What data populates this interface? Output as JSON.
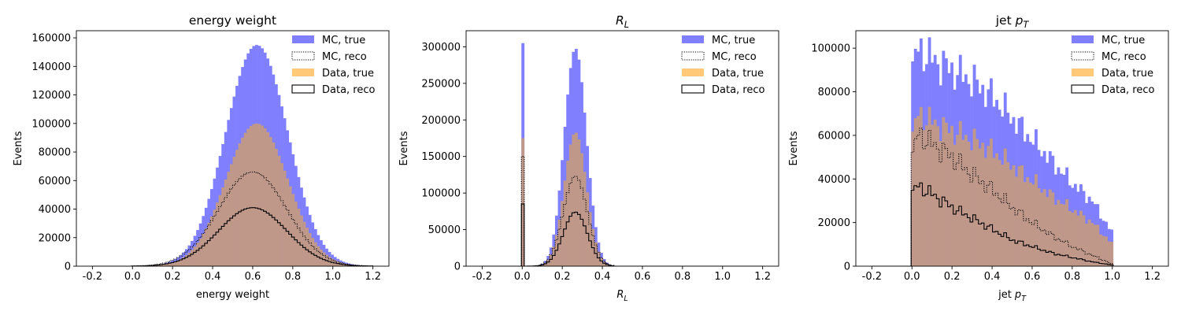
{
  "figure": {
    "layout": "1x3",
    "colors": {
      "mc_true": "#8080ff",
      "data_true": "#ffc978",
      "overlap": "#c0988a",
      "reco": "#000000"
    },
    "legend": [
      "MC, true",
      "MC, reco",
      "Data, true",
      "Data, reco"
    ]
  },
  "chart_data": [
    {
      "type": "histogram",
      "title": "energy weight",
      "xlabel": "energy weight",
      "ylabel": "Events",
      "xlim": [
        -0.28,
        1.28
      ],
      "ylim": [
        0,
        165000
      ],
      "xticks": [
        "-0.2",
        "0.0",
        "0.2",
        "0.4",
        "0.6",
        "0.8",
        "1.0",
        "1.2"
      ],
      "yticks": [
        "0",
        "20000",
        "40000",
        "60000",
        "80000",
        "100000",
        "120000",
        "140000",
        "160000"
      ],
      "legend_position": "upper right",
      "bins": {
        "start": -0.2,
        "end": 1.2,
        "count": 100
      },
      "series": [
        {
          "name": "MC, true",
          "shape": "gauss",
          "center": 0.62,
          "width": 0.155,
          "peak": 155000,
          "support": [
            0.0,
            1.2
          ]
        },
        {
          "name": "MC, reco",
          "shape": "gauss",
          "center": 0.6,
          "width": 0.17,
          "peak": 66000,
          "support": [
            0.0,
            1.2
          ]
        },
        {
          "name": "Data, true",
          "shape": "gauss",
          "center": 0.62,
          "width": 0.155,
          "peak": 100000,
          "support": [
            0.0,
            1.2
          ]
        },
        {
          "name": "Data, reco",
          "shape": "gauss",
          "center": 0.6,
          "width": 0.17,
          "peak": 41000,
          "support": [
            0.0,
            1.2
          ]
        }
      ]
    },
    {
      "type": "histogram",
      "title": "R_L",
      "xlabel": "R_L",
      "ylabel": "Events",
      "xlim": [
        -0.28,
        1.28
      ],
      "ylim": [
        0,
        322000
      ],
      "xticks": [
        "-0.2",
        "0.0",
        "0.2",
        "0.4",
        "0.6",
        "0.8",
        "1.0",
        "1.2"
      ],
      "yticks": [
        "0",
        "50000",
        "100000",
        "150000",
        "200000",
        "250000",
        "300000"
      ],
      "legend_position": "upper right",
      "bins": {
        "start": -0.2,
        "end": 1.2,
        "count": 100
      },
      "series": [
        {
          "name": "MC, true",
          "shape": "gauss",
          "center": 0.265,
          "width": 0.055,
          "peak": 298000,
          "support": [
            0.02,
            0.46
          ],
          "spike": {
            "x": 0.0,
            "value": 305000
          }
        },
        {
          "name": "MC, reco",
          "shape": "gauss",
          "center": 0.265,
          "width": 0.06,
          "peak": 123000,
          "support": [
            0.02,
            0.46
          ],
          "spike": {
            "x": 0.0,
            "value": 150000
          }
        },
        {
          "name": "Data, true",
          "shape": "gauss",
          "center": 0.265,
          "width": 0.055,
          "peak": 183000,
          "support": [
            0.02,
            0.46
          ],
          "spike": {
            "x": 0.0,
            "value": 175000
          }
        },
        {
          "name": "Data, reco",
          "shape": "gauss",
          "center": 0.265,
          "width": 0.06,
          "peak": 74000,
          "support": [
            0.02,
            0.46
          ],
          "spike": {
            "x": 0.0,
            "value": 85000
          }
        }
      ]
    },
    {
      "type": "histogram",
      "title": "jet p_T",
      "xlabel": "jet p_T",
      "ylabel": "Events",
      "xlim": [
        -0.28,
        1.28
      ],
      "ylim": [
        0,
        108000
      ],
      "xticks": [
        "-0.2",
        "0.0",
        "0.2",
        "0.4",
        "0.6",
        "0.8",
        "1.0",
        "1.2"
      ],
      "yticks": [
        "0",
        "20000",
        "40000",
        "60000",
        "80000",
        "100000"
      ],
      "legend_position": "upper right",
      "bins": {
        "start": -0.2,
        "end": 1.2,
        "count": 100
      },
      "series": [
        {
          "name": "MC, true",
          "shape": "falling",
          "x": [
            0.0,
            0.03,
            0.1,
            0.2,
            0.3,
            0.4,
            0.5,
            0.6,
            0.7,
            0.8,
            0.9,
            1.0
          ],
          "y": [
            89000,
            100000,
            95000,
            90000,
            85000,
            78000,
            68000,
            58000,
            48000,
            38000,
            30000,
            15000
          ]
        },
        {
          "name": "MC, reco",
          "shape": "falling",
          "x": [
            0.0,
            0.03,
            0.1,
            0.2,
            0.3,
            0.4,
            0.5,
            0.6,
            0.7,
            0.8,
            0.9,
            1.0
          ],
          "y": [
            49000,
            61000,
            56000,
            50000,
            42000,
            35000,
            27000,
            20000,
            14000,
            9000,
            5000,
            1000
          ]
        },
        {
          "name": "Data, true",
          "shape": "falling",
          "x": [
            0.0,
            0.03,
            0.1,
            0.2,
            0.3,
            0.4,
            0.5,
            0.6,
            0.7,
            0.8,
            0.9,
            1.0
          ],
          "y": [
            58000,
            70000,
            66000,
            62000,
            58000,
            53000,
            46000,
            39000,
            32000,
            26000,
            20000,
            10000
          ]
        },
        {
          "name": "Data, reco",
          "shape": "falling",
          "x": [
            0.0,
            0.03,
            0.1,
            0.2,
            0.3,
            0.4,
            0.5,
            0.6,
            0.7,
            0.8,
            0.9,
            1.0
          ],
          "y": [
            33000,
            37000,
            33000,
            27000,
            22000,
            17000,
            12000,
            9000,
            6000,
            4000,
            2000,
            500
          ]
        }
      ]
    }
  ]
}
